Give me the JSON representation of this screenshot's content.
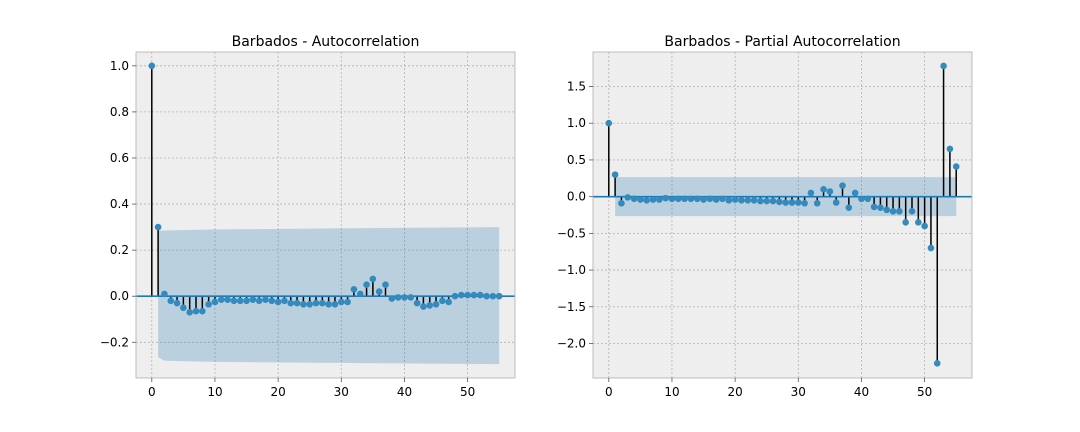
{
  "chart_data": [
    {
      "type": "stem",
      "title": "Barbados - Autocorrelation",
      "xlim": [
        -2.5,
        57.5
      ],
      "ylim": [
        -0.355,
        1.06
      ],
      "xticks": [
        0,
        10,
        20,
        30,
        40,
        50
      ],
      "yticks": [
        -0.2,
        0.0,
        0.2,
        0.4,
        0.6,
        0.8,
        1.0
      ],
      "xtick_labels": [
        "0",
        "10",
        "20",
        "30",
        "40",
        "50"
      ],
      "ytick_labels": [
        "−0.2",
        "0.0",
        "0.2",
        "0.4",
        "0.6",
        "0.8",
        "1.0"
      ],
      "grid": true,
      "confidence_band": {
        "x": [
          1,
          2,
          10,
          55
        ],
        "upper": [
          0.285,
          0.285,
          0.29,
          0.3
        ],
        "lower": [
          -0.265,
          -0.28,
          -0.285,
          -0.295
        ]
      },
      "x": [
        0,
        1,
        2,
        3,
        4,
        5,
        6,
        7,
        8,
        9,
        10,
        11,
        12,
        13,
        14,
        15,
        16,
        17,
        18,
        19,
        20,
        21,
        22,
        23,
        24,
        25,
        26,
        27,
        28,
        29,
        30,
        31,
        32,
        33,
        34,
        35,
        36,
        37,
        38,
        39,
        40,
        41,
        42,
        43,
        44,
        45,
        46,
        47,
        48,
        49,
        50,
        51,
        52,
        53,
        54,
        55
      ],
      "values": [
        1.0,
        0.3,
        0.01,
        -0.02,
        -0.03,
        -0.05,
        -0.07,
        -0.065,
        -0.065,
        -0.035,
        -0.025,
        -0.015,
        -0.015,
        -0.02,
        -0.02,
        -0.02,
        -0.015,
        -0.02,
        -0.015,
        -0.02,
        -0.025,
        -0.02,
        -0.03,
        -0.03,
        -0.035,
        -0.035,
        -0.03,
        -0.03,
        -0.035,
        -0.035,
        -0.025,
        -0.025,
        0.03,
        0.01,
        0.05,
        0.075,
        0.02,
        0.05,
        -0.01,
        -0.005,
        -0.005,
        -0.005,
        -0.03,
        -0.045,
        -0.04,
        -0.035,
        -0.02,
        -0.025,
        0.0,
        0.005,
        0.005,
        0.005,
        0.005,
        0.0,
        0.0,
        0.0
      ]
    },
    {
      "type": "stem",
      "title": "Barbados - Partial Autocorrelation",
      "xlim": [
        -2.5,
        57.5
      ],
      "ylim": [
        -2.47,
        1.97
      ],
      "xticks": [
        0,
        10,
        20,
        30,
        40,
        50
      ],
      "yticks": [
        -2.0,
        -1.5,
        -1.0,
        -0.5,
        0.0,
        0.5,
        1.0,
        1.5
      ],
      "xtick_labels": [
        "0",
        "10",
        "20",
        "30",
        "40",
        "50"
      ],
      "ytick_labels": [
        "−2.0",
        "−1.5",
        "−1.0",
        "−0.5",
        "0.0",
        "0.5",
        "1.0",
        "1.5"
      ],
      "grid": true,
      "confidence_band": {
        "x": [
          1,
          55
        ],
        "upper": [
          0.265,
          0.265
        ],
        "lower": [
          -0.265,
          -0.265
        ]
      },
      "x": [
        0,
        1,
        2,
        3,
        4,
        5,
        6,
        7,
        8,
        9,
        10,
        11,
        12,
        13,
        14,
        15,
        16,
        17,
        18,
        19,
        20,
        21,
        22,
        23,
        24,
        25,
        26,
        27,
        28,
        29,
        30,
        31,
        32,
        33,
        34,
        35,
        36,
        37,
        38,
        39,
        40,
        41,
        42,
        43,
        44,
        45,
        46,
        47,
        48,
        49,
        50,
        51,
        52,
        53,
        54,
        55
      ],
      "values": [
        1.0,
        0.3,
        -0.09,
        -0.01,
        -0.03,
        -0.04,
        -0.05,
        -0.04,
        -0.04,
        -0.02,
        -0.03,
        -0.03,
        -0.03,
        -0.03,
        -0.03,
        -0.04,
        -0.03,
        -0.04,
        -0.03,
        -0.05,
        -0.04,
        -0.05,
        -0.05,
        -0.05,
        -0.06,
        -0.06,
        -0.06,
        -0.07,
        -0.08,
        -0.08,
        -0.08,
        -0.09,
        0.05,
        -0.09,
        0.1,
        0.07,
        -0.08,
        0.15,
        -0.15,
        0.05,
        -0.03,
        -0.03,
        -0.14,
        -0.15,
        -0.18,
        -0.2,
        -0.2,
        -0.35,
        -0.2,
        -0.35,
        -0.4,
        -0.7,
        -2.27,
        1.78,
        0.65,
        0.41
      ]
    }
  ]
}
